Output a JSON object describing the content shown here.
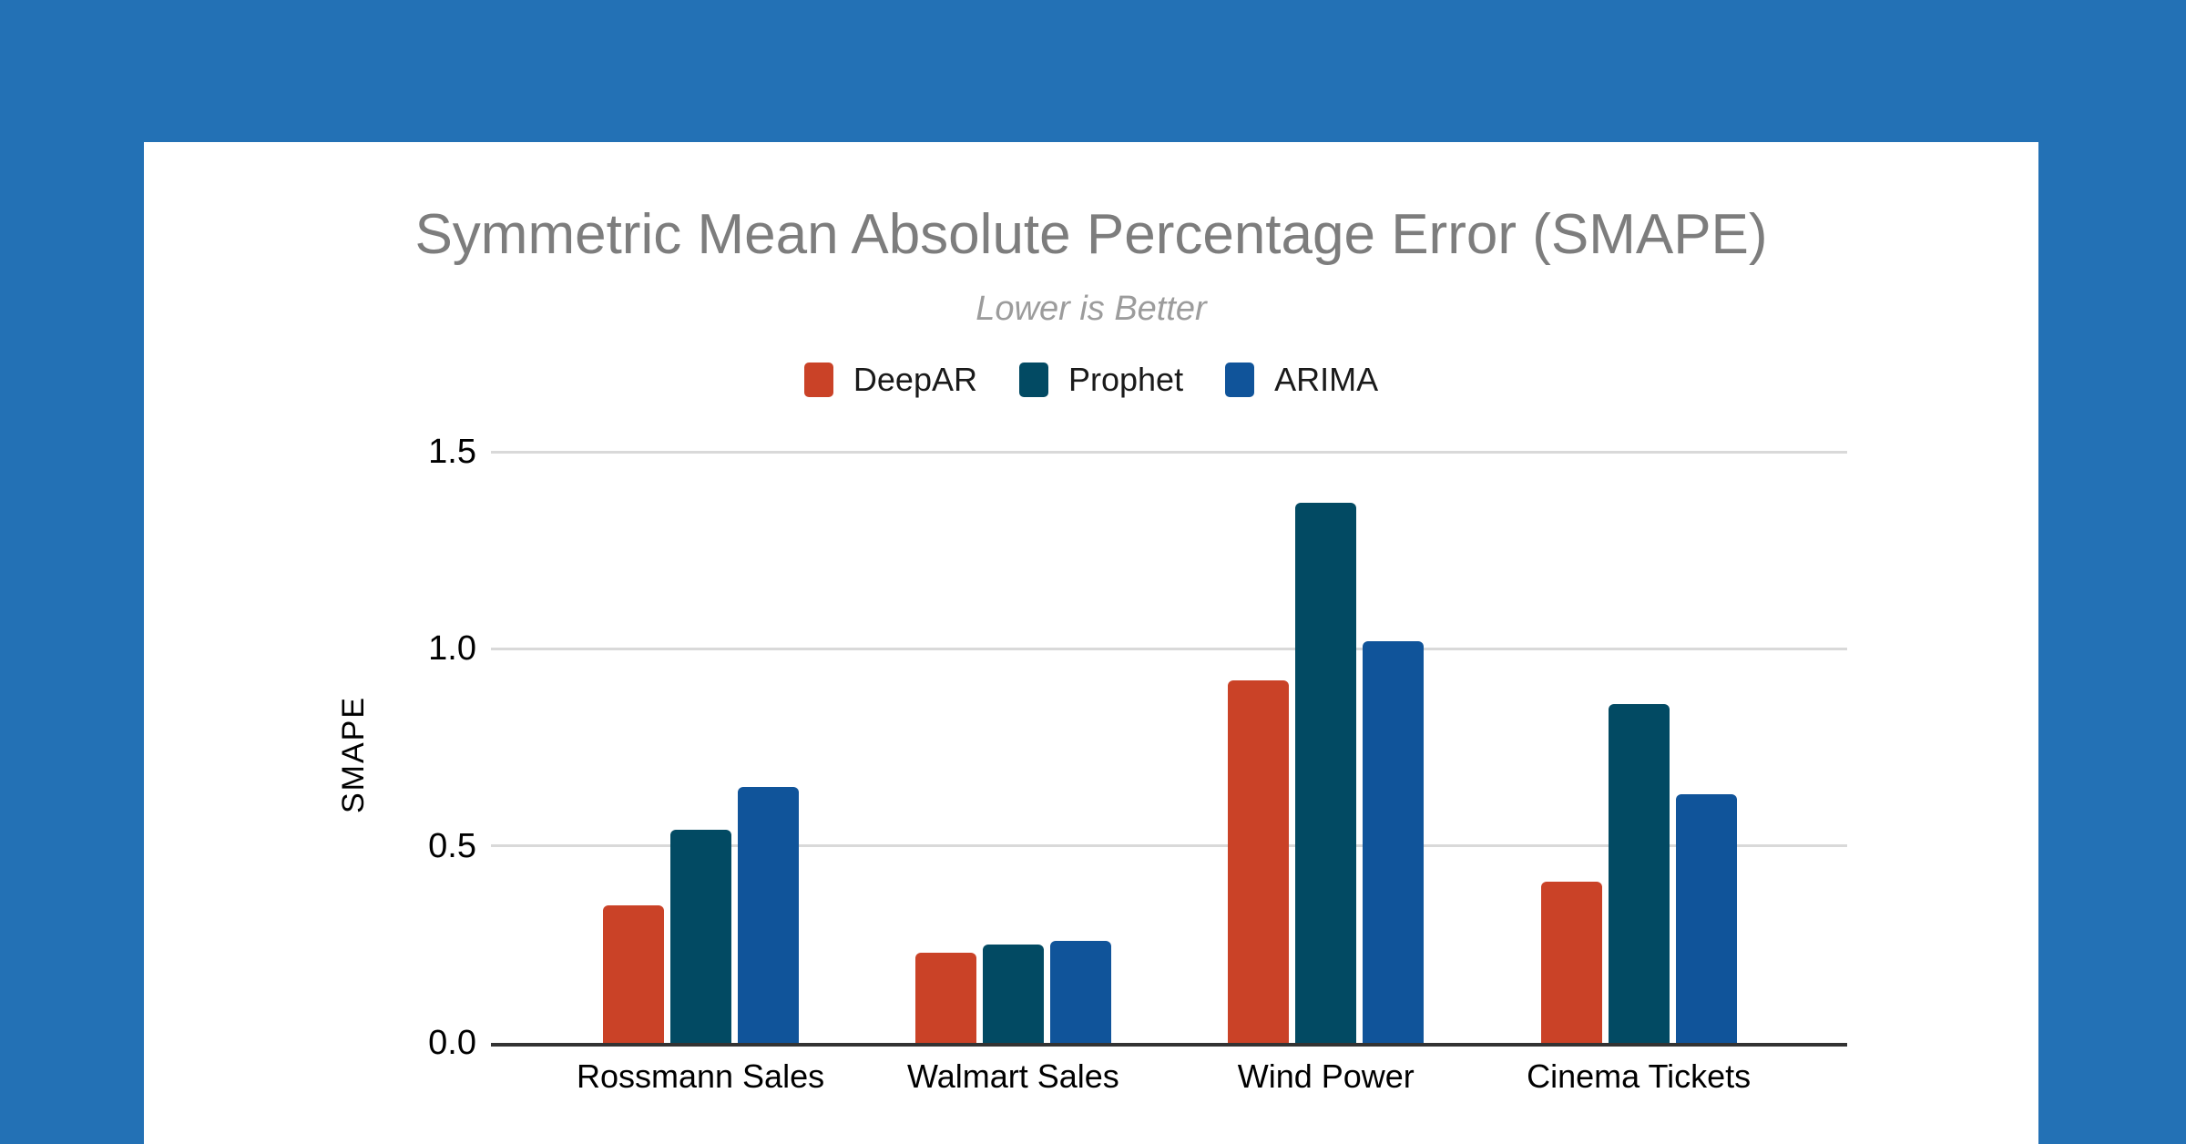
{
  "page": {
    "background_color": "#2371B5",
    "card_color": "#FFFFFF"
  },
  "style": {
    "title_color": "#7D7D7D",
    "subtitle_color": "#9C9C9C",
    "gridline_color": "#D9D9D9",
    "axis_color": "#333333",
    "tick_label_color": "#000000"
  },
  "chart_data": {
    "type": "bar",
    "title": "Symmetric Mean Absolute Percentage Error (SMAPE)",
    "subtitle": "Lower is Better",
    "categories": [
      "Rossmann Sales",
      "Walmart Sales",
      "Wind Power",
      "Cinema Tickets"
    ],
    "series": [
      {
        "name": "DeepAR",
        "color": "#CA4227",
        "values": [
          0.35,
          0.23,
          0.92,
          0.41
        ]
      },
      {
        "name": "Prophet",
        "color": "#024A63",
        "values": [
          0.54,
          0.25,
          1.37,
          0.86
        ]
      },
      {
        "name": "ARIMA",
        "color": "#10549A",
        "values": [
          0.65,
          0.26,
          1.02,
          0.63
        ]
      }
    ],
    "xlabel": "",
    "ylabel": "SMAPE",
    "ylim": [
      0,
      1.5
    ],
    "yticks": [
      "0.0",
      "0.5",
      "1.0",
      "1.5"
    ],
    "grid": true,
    "gridline_values": [
      0.5,
      1.0,
      1.5
    ],
    "legend_position": "top"
  }
}
